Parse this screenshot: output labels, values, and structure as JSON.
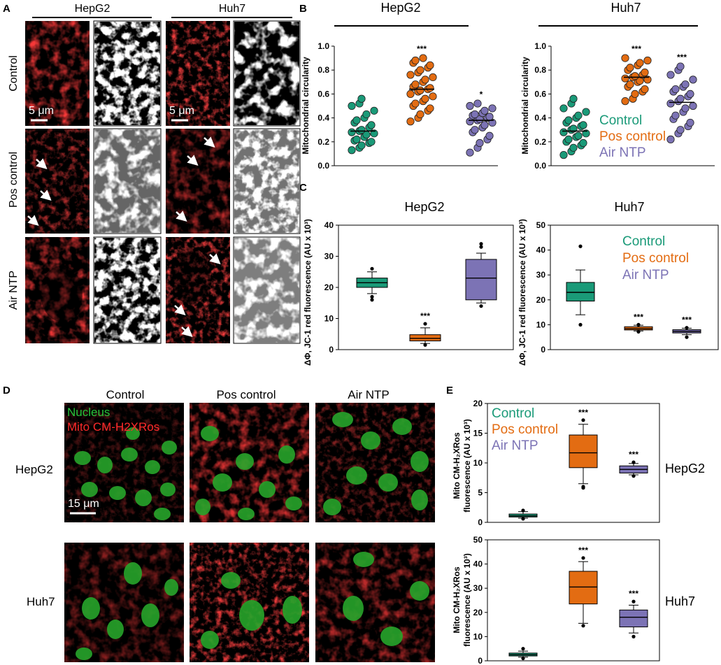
{
  "panels": {
    "a": "A",
    "b": "B",
    "c": "C",
    "d": "D",
    "e": "E"
  },
  "cells": {
    "hepg2": "HepG2",
    "huh7": "Huh7"
  },
  "conditions": {
    "control": "Control",
    "pos_control": "Pos control",
    "air_ntp": "Air NTP"
  },
  "scale_bars": {
    "five_um": "5 μm",
    "fifteen_um": "15 μm"
  },
  "panel_d": {
    "legend_nucleus": "Nucleus",
    "legend_mito": "Mito CM-H2XRos"
  },
  "colors": {
    "control": "#1a9a78",
    "pos_control": "#e36c12",
    "air_ntp": "#7c73b5"
  },
  "chart_data": [
    {
      "id": "b-hepg2",
      "type": "scatter",
      "title": "HepG2",
      "ylabel": "Mitochondrial circularity",
      "ylim": [
        0,
        1.0
      ],
      "yticks": [
        "0.0",
        "0.2",
        "0.4",
        "0.6",
        "0.8",
        "1.0"
      ],
      "grid": false,
      "groups": [
        {
          "name": "Control",
          "median": 0.29,
          "significance": "",
          "points": [
            0.13,
            0.15,
            0.17,
            0.19,
            0.2,
            0.21,
            0.22,
            0.24,
            0.26,
            0.27,
            0.28,
            0.29,
            0.3,
            0.32,
            0.34,
            0.36,
            0.38,
            0.4,
            0.43,
            0.46,
            0.5,
            0.52,
            0.56
          ]
        },
        {
          "name": "Pos control",
          "median": 0.64,
          "significance": "***",
          "points": [
            0.37,
            0.4,
            0.43,
            0.46,
            0.48,
            0.5,
            0.52,
            0.54,
            0.56,
            0.58,
            0.6,
            0.62,
            0.63,
            0.64,
            0.65,
            0.66,
            0.68,
            0.7,
            0.72,
            0.74,
            0.76,
            0.78,
            0.8,
            0.82,
            0.84,
            0.86,
            0.88,
            0.9
          ]
        },
        {
          "name": "Air NTP",
          "median": 0.38,
          "significance": "*",
          "points": [
            0.11,
            0.15,
            0.19,
            0.22,
            0.25,
            0.28,
            0.3,
            0.32,
            0.34,
            0.36,
            0.37,
            0.38,
            0.39,
            0.4,
            0.41,
            0.42,
            0.43,
            0.44,
            0.46,
            0.48,
            0.5,
            0.52
          ]
        }
      ]
    },
    {
      "id": "b-huh7",
      "type": "scatter",
      "title": "Huh7",
      "ylabel": "Mitochondrial circularity",
      "ylim": [
        0,
        1.0
      ],
      "yticks": [
        "0.0",
        "0.2",
        "0.4",
        "0.6",
        "0.8",
        "1.0"
      ],
      "grid": false,
      "legend": {
        "position": "right",
        "entries": [
          "Control",
          "Pos control",
          "Air NTP"
        ]
      },
      "groups": [
        {
          "name": "Control",
          "median": 0.29,
          "significance": "",
          "points": [
            0.09,
            0.12,
            0.15,
            0.17,
            0.19,
            0.2,
            0.22,
            0.24,
            0.25,
            0.27,
            0.28,
            0.3,
            0.31,
            0.33,
            0.34,
            0.36,
            0.38,
            0.4,
            0.42,
            0.45,
            0.48,
            0.52,
            0.56
          ]
        },
        {
          "name": "Pos control",
          "median": 0.74,
          "significance": "***",
          "points": [
            0.54,
            0.56,
            0.6,
            0.62,
            0.64,
            0.66,
            0.68,
            0.7,
            0.71,
            0.72,
            0.73,
            0.74,
            0.75,
            0.76,
            0.78,
            0.8,
            0.82,
            0.84,
            0.86,
            0.88,
            0.9
          ]
        },
        {
          "name": "Air NTP",
          "median": 0.53,
          "significance": "***",
          "points": [
            0.22,
            0.27,
            0.3,
            0.33,
            0.36,
            0.39,
            0.42,
            0.45,
            0.48,
            0.5,
            0.52,
            0.54,
            0.56,
            0.58,
            0.6,
            0.62,
            0.64,
            0.66,
            0.68,
            0.72,
            0.76,
            0.8,
            0.83
          ]
        }
      ]
    },
    {
      "id": "c-hepg2",
      "type": "box",
      "title": "HepG2",
      "ylabel": "ΔΦ, JC-1 red fluorescence (AU x 10³)",
      "ylim": [
        0,
        40
      ],
      "yticks": [
        "0",
        "10",
        "20",
        "30",
        "40"
      ],
      "grid": false,
      "groups": [
        {
          "name": "Control",
          "whisker_low": 18,
          "q1": 20,
          "median": 21.5,
          "q3": 23,
          "whisker_high": 25,
          "outliers": [
            16,
            17,
            26
          ],
          "significance": ""
        },
        {
          "name": "Pos control",
          "whisker_low": 2,
          "q1": 2.8,
          "median": 3.6,
          "q3": 4.8,
          "whisker_high": 7,
          "outliers": [
            1.5,
            8.3
          ],
          "significance": "***"
        },
        {
          "name": "Air NTP",
          "whisker_low": 15,
          "q1": 16,
          "median": 23,
          "q3": 29,
          "whisker_high": 31,
          "outliers": [
            14,
            33,
            34
          ],
          "significance": ""
        }
      ]
    },
    {
      "id": "c-huh7",
      "type": "box",
      "title": "Huh7",
      "ylabel": "ΔΦ, JC-1 red fluorescence (AU x 10³)",
      "ylim": [
        0,
        50
      ],
      "yticks": [
        "0",
        "10",
        "20",
        "30",
        "40",
        "50"
      ],
      "grid": false,
      "legend": {
        "position": "top-right",
        "entries": [
          "Control",
          "Pos control",
          "Air NTP"
        ]
      },
      "groups": [
        {
          "name": "Control",
          "whisker_low": 14,
          "q1": 19.5,
          "median": 23,
          "q3": 27,
          "whisker_high": 32,
          "outliers": [
            10,
            41.5
          ],
          "significance": ""
        },
        {
          "name": "Pos control",
          "whisker_low": 7.5,
          "q1": 7.9,
          "median": 8.4,
          "q3": 9.2,
          "whisker_high": 9.8,
          "outliers": [
            7.2,
            10
          ],
          "significance": "***"
        },
        {
          "name": "Air NTP",
          "whisker_low": 6,
          "q1": 6.7,
          "median": 7.3,
          "q3": 8,
          "whisker_high": 8.6,
          "outliers": [
            5,
            8.8
          ],
          "significance": "***"
        }
      ]
    },
    {
      "id": "e-hepg2",
      "type": "box",
      "title": "",
      "side_label": "HepG2",
      "ylabel_line1": "Mito CM-H₂XRos",
      "ylabel_line2": "fluorescence (AU x 10³)",
      "ylim": [
        0,
        20
      ],
      "yticks": [
        "0",
        "5",
        "10",
        "15",
        "20"
      ],
      "grid": false,
      "legend": {
        "position": "top-left",
        "entries": [
          "Control",
          "Pos control",
          "Air NTP"
        ]
      },
      "groups": [
        {
          "name": "Control",
          "whisker_low": 0.7,
          "q1": 0.9,
          "median": 1.1,
          "q3": 1.4,
          "whisker_high": 1.8,
          "outliers": [
            2.0,
            0.6
          ],
          "significance": ""
        },
        {
          "name": "Pos control",
          "whisker_low": 6.5,
          "q1": 9.2,
          "median": 11.7,
          "q3": 14.7,
          "whisker_high": 16.5,
          "outliers": [
            5.8,
            6.0,
            17.2
          ],
          "significance": "***"
        },
        {
          "name": "Air NTP",
          "whisker_low": 8.0,
          "q1": 8.3,
          "median": 8.9,
          "q3": 9.5,
          "whisker_high": 9.9,
          "outliers": [
            7.8,
            10.1
          ],
          "significance": "***"
        }
      ]
    },
    {
      "id": "e-huh7",
      "type": "box",
      "title": "",
      "side_label": "Huh7",
      "ylabel_line1": "Mito CM-H₂XRos",
      "ylabel_line2": "fluorescence (AU x 10³)",
      "ylim": [
        0,
        50
      ],
      "yticks": [
        "0",
        "10",
        "20",
        "30",
        "40",
        "50"
      ],
      "grid": false,
      "groups": [
        {
          "name": "Control",
          "whisker_low": 1.5,
          "q1": 2.0,
          "median": 2.5,
          "q3": 3.2,
          "whisker_high": 4.0,
          "outliers": [
            1.0,
            5.0
          ],
          "significance": ""
        },
        {
          "name": "Pos control",
          "whisker_low": 15.5,
          "q1": 23.5,
          "median": 30.5,
          "q3": 37,
          "whisker_high": 41,
          "outliers": [
            14.5,
            42.5
          ],
          "significance": "***"
        },
        {
          "name": "Air NTP",
          "whisker_low": 11.5,
          "q1": 14,
          "median": 18,
          "q3": 21,
          "whisker_high": 23,
          "outliers": [
            10,
            24.5
          ],
          "significance": "***"
        }
      ]
    }
  ]
}
